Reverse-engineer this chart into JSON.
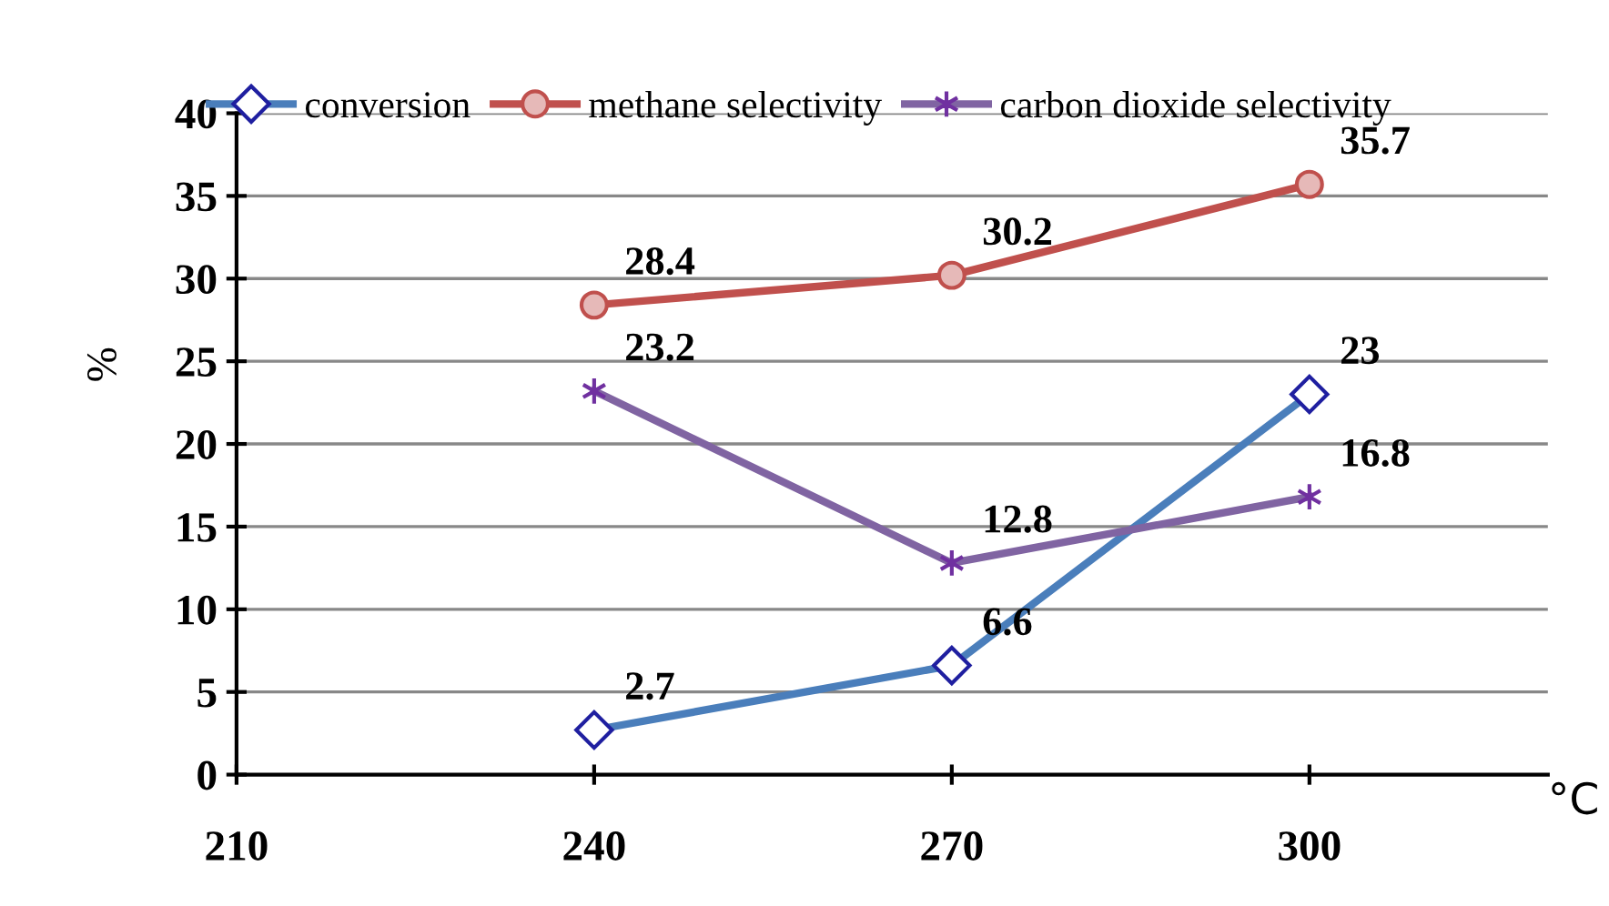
{
  "chart_data": {
    "type": "line",
    "xlabel": "°C",
    "ylabel": "%",
    "x": [
      240,
      270,
      300
    ],
    "series": [
      {
        "name": "conversion",
        "color": "#4a7ebb",
        "marker": "diamond",
        "values": [
          2.7,
          6.6,
          23
        ]
      },
      {
        "name": "methane selectivity",
        "color": "#c0504d",
        "marker": "circle",
        "values": [
          28.4,
          30.2,
          35.7
        ]
      },
      {
        "name": "carbon dioxide selectivity",
        "color": "#8064a2",
        "marker": "cross",
        "values": [
          23.2,
          12.8,
          16.8
        ]
      }
    ],
    "xlim": [
      210,
      320
    ],
    "xticks": [
      210,
      240,
      270,
      300
    ],
    "ylim": [
      0,
      40
    ],
    "yticks": [
      0,
      5,
      10,
      15,
      20,
      25,
      30,
      35,
      40
    ],
    "grid": "y",
    "legend": "top",
    "data_labels": true,
    "line_style": "solid"
  }
}
